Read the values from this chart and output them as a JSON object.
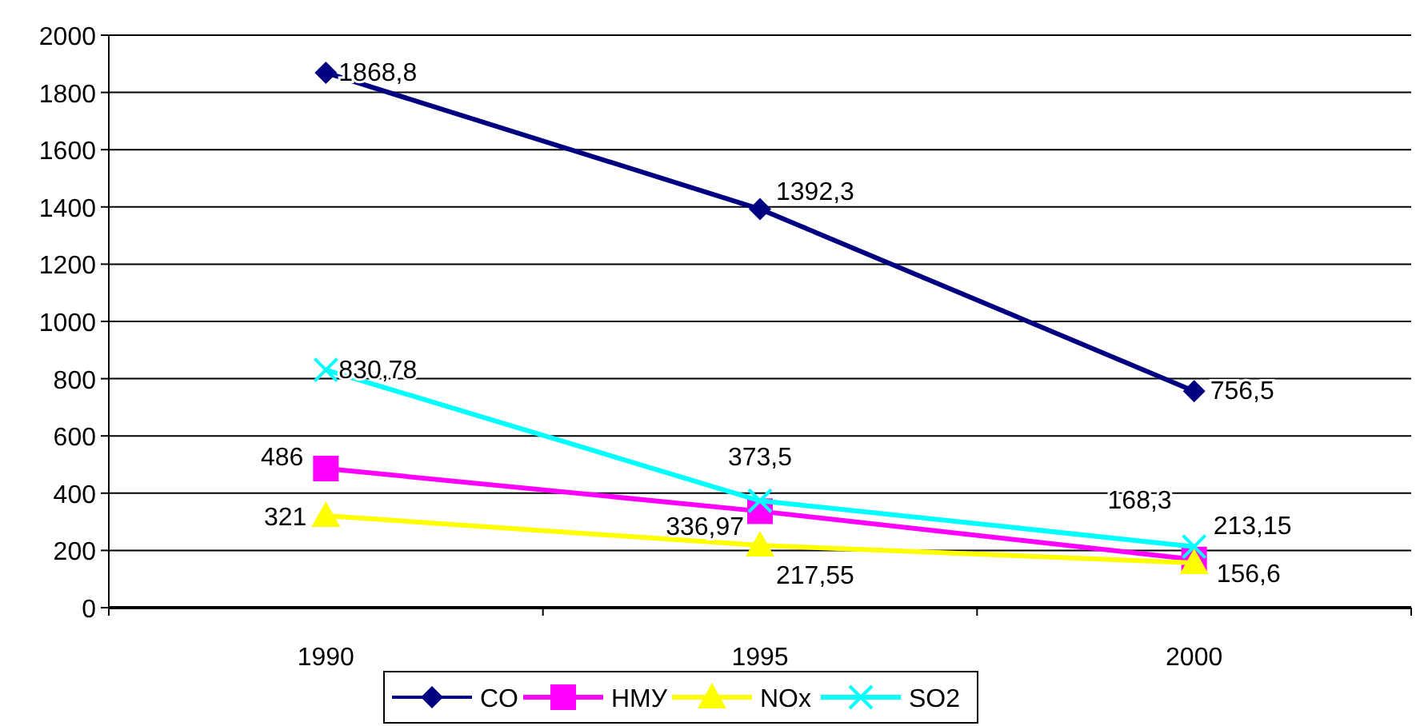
{
  "chart_data": {
    "type": "line",
    "categories": [
      "1990",
      "1995",
      "2000"
    ],
    "ylim": [
      0,
      2000
    ],
    "yticks": [
      0,
      200,
      400,
      600,
      800,
      1000,
      1200,
      1400,
      1600,
      1800,
      2000
    ],
    "grid": "y",
    "legend": "bottom",
    "series": [
      {
        "name": "CO",
        "color": "#000080",
        "marker": "diamond",
        "values": [
          1868.8,
          1392.3,
          756.5
        ],
        "value_labels": [
          "1868,8",
          "1392,3",
          "756,5"
        ]
      },
      {
        "name": "НМУ",
        "color": "#ff00ff",
        "marker": "square",
        "values": [
          486,
          336.97,
          168.3
        ],
        "value_labels": [
          "486",
          "336,97",
          "168,3"
        ]
      },
      {
        "name": "NOx",
        "color": "#ffff00",
        "marker": "triangle",
        "values": [
          321,
          217.55,
          156.6
        ],
        "value_labels": [
          "321",
          "217,55",
          "156,6"
        ]
      },
      {
        "name": "SO2",
        "color": "#00ffff",
        "marker": "cross",
        "values": [
          830.78,
          373.5,
          213.15
        ],
        "value_labels": [
          "830,78",
          "373,5",
          "213,15"
        ]
      }
    ]
  }
}
